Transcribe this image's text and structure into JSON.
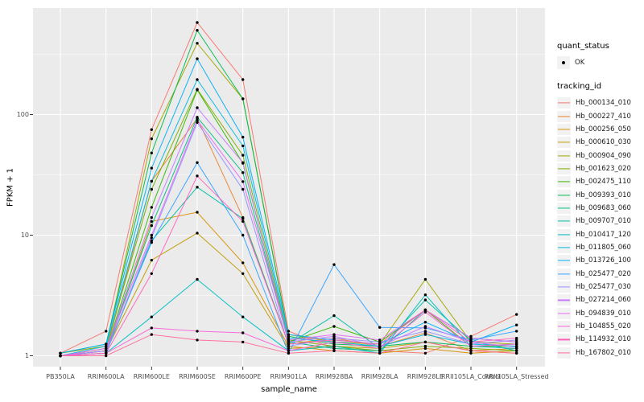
{
  "chart": {
    "colors": {
      "panel_bg": "#EBEBEB",
      "grid_major": "#FFFFFF",
      "grid_minor": "#FFFFFF",
      "tick_mark": "#333333",
      "tick_text": "#4D4D4D",
      "point": "#000000"
    },
    "legend": {
      "quant_status_title": "quant_status",
      "ok_label": "OK",
      "tracking_id_title": "tracking_id"
    }
  },
  "chart_data": {
    "type": "line",
    "title": "",
    "xlabel": "sample_name",
    "ylabel": "FPKM + 1",
    "y_scale": "log10",
    "ylim": [
      1,
      600
    ],
    "yticks": [
      1,
      10,
      100
    ],
    "grid": true,
    "legend_position": "right",
    "marker": "black point (quant_status OK)",
    "categories": [
      "PB350LA",
      "RRIM600LA",
      "RRIM600LE",
      "RRIM600SE",
      "RRIM600PE",
      "RRIM901LA",
      "RRIM928BA",
      "RRIM928LA",
      "RRIM928LE",
      "RRII105LA_Control",
      "RRII105LA_Stressed"
    ],
    "series": [
      {
        "name": "Hb_000134_010",
        "color": "#F8766D",
        "values": [
          1.05,
          1.6,
          75,
          580,
          195,
          1.6,
          1.15,
          1.1,
          1.05,
          1.45,
          2.2
        ]
      },
      {
        "name": "Hb_000227_410",
        "color": "#EA8331",
        "values": [
          1.0,
          1.1,
          28,
          93,
          14,
          1.25,
          1.4,
          1.2,
          1.55,
          1.1,
          1.15
        ]
      },
      {
        "name": "Hb_000256_050",
        "color": "#D89000",
        "values": [
          1.0,
          1.05,
          13,
          15.5,
          5.9,
          1.2,
          1.1,
          1.05,
          1.15,
          1.05,
          1.1
        ]
      },
      {
        "name": "Hb_000610_030",
        "color": "#C09B00",
        "values": [
          1.0,
          1.1,
          6.2,
          10.4,
          4.8,
          1.15,
          1.2,
          1.15,
          1.3,
          1.1,
          1.05
        ]
      },
      {
        "name": "Hb_000904_090",
        "color": "#A3A500",
        "values": [
          1.05,
          1.2,
          63,
          390,
          135,
          1.5,
          1.3,
          1.25,
          4.3,
          1.3,
          1.25
        ]
      },
      {
        "name": "Hb_001623_020",
        "color": "#7CAE00",
        "values": [
          1.0,
          1.15,
          24,
          162,
          46,
          1.35,
          1.2,
          1.1,
          1.2,
          1.15,
          1.1
        ]
      },
      {
        "name": "Hb_002475_110",
        "color": "#39B600",
        "values": [
          1.0,
          1.1,
          17,
          160,
          39.5,
          1.3,
          1.75,
          1.3,
          2.4,
          1.2,
          1.2
        ]
      },
      {
        "name": "Hb_009393_010",
        "color": "#00BB4E",
        "values": [
          1.05,
          1.25,
          48,
          500,
          135,
          1.45,
          1.25,
          1.2,
          1.3,
          1.2,
          1.25
        ]
      },
      {
        "name": "Hb_009683_060",
        "color": "#00BF7D",
        "values": [
          1.0,
          1.1,
          12,
          95,
          33,
          1.3,
          1.15,
          1.1,
          2.4,
          1.4,
          1.3
        ]
      },
      {
        "name": "Hb_009707_010",
        "color": "#00C1A3",
        "values": [
          1.0,
          1.05,
          9,
          25,
          13.7,
          1.25,
          2.15,
          1.15,
          2.9,
          1.33,
          1.1
        ]
      },
      {
        "name": "Hb_010417_120",
        "color": "#00BFC4",
        "values": [
          1.0,
          1.05,
          2.1,
          4.3,
          2.1,
          1.1,
          1.2,
          1.05,
          3.2,
          1.2,
          1.15
        ]
      },
      {
        "name": "Hb_011805_060",
        "color": "#00BAE0",
        "values": [
          1.0,
          1.2,
          28,
          195,
          55,
          1.4,
          1.3,
          1.2,
          1.5,
          1.25,
          1.2
        ]
      },
      {
        "name": "Hb_013726_100",
        "color": "#00B0F6",
        "values": [
          1.05,
          1.25,
          36,
          290,
          65,
          1.5,
          1.35,
          1.25,
          1.9,
          1.3,
          1.8
        ]
      },
      {
        "name": "Hb_025477_020",
        "color": "#35A2FF",
        "values": [
          1.0,
          1.1,
          8.7,
          40,
          10,
          1.05,
          5.7,
          1.72,
          1.7,
          1.35,
          1.6
        ]
      },
      {
        "name": "Hb_025477_030",
        "color": "#9590FF",
        "values": [
          1.0,
          1.05,
          9.5,
          86,
          24,
          1.2,
          1.4,
          1.3,
          1.6,
          1.25,
          1.35
        ]
      },
      {
        "name": "Hb_027214_060",
        "color": "#C77CFF",
        "values": [
          1.0,
          1.1,
          14,
          114,
          40,
          1.3,
          1.45,
          1.2,
          1.75,
          1.3,
          1.18
        ]
      },
      {
        "name": "Hb_094839_010",
        "color": "#E76BF3",
        "values": [
          1.0,
          1.15,
          10,
          90,
          27.8,
          1.35,
          1.5,
          1.35,
          2.4,
          1.4,
          1.3
        ]
      },
      {
        "name": "Hb_104855_020",
        "color": "#FA62DB",
        "values": [
          1.0,
          1.05,
          1.7,
          1.6,
          1.55,
          1.1,
          1.3,
          1.15,
          2.3,
          1.2,
          1.25
        ]
      },
      {
        "name": "Hb_114932_010",
        "color": "#FF62BC",
        "values": [
          1.0,
          1.05,
          4.8,
          31,
          13,
          1.25,
          1.35,
          1.25,
          2.4,
          1.3,
          1.4
        ]
      },
      {
        "name": "Hb_167802_010",
        "color": "#FF6A98",
        "values": [
          1.0,
          1.0,
          1.5,
          1.35,
          1.3,
          1.05,
          1.1,
          1.05,
          1.3,
          1.1,
          1.05
        ]
      }
    ]
  }
}
